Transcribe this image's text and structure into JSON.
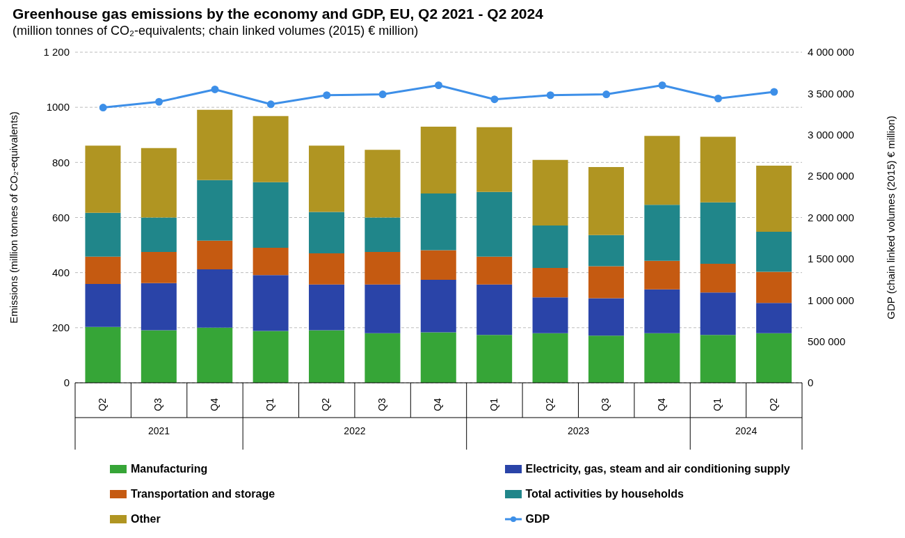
{
  "chart_data": {
    "type": "bar",
    "title": "Greenhouse gas emissions by the economy and GDP, EU, Q2 2021 - Q2 2024",
    "subtitle": "(million tonnes of CO₂-equivalents;  chain linked volumes (2015) € million)",
    "ylabel": "Emissions (million tonnes of CO₂-equivalents)",
    "y2label": "GDP (chain linked volumes (2015) € million)",
    "categories": [
      "Q2",
      "Q3",
      "Q4",
      "Q1",
      "Q2",
      "Q3",
      "Q4",
      "Q1",
      "Q2",
      "Q3",
      "Q4",
      "Q1",
      "Q2"
    ],
    "annotations": [
      "2021",
      "2022",
      "2023",
      "2024"
    ],
    "stacked": true,
    "grid": "y",
    "legend": "bottom",
    "marker": "circle",
    "ylim": [
      0,
      1200
    ],
    "yticks": [
      0,
      200,
      400,
      600,
      800,
      1000,
      {
        "value": 1200,
        "label": "1 200"
      }
    ],
    "y2lim": [
      0,
      4000000
    ],
    "y2ticks": [
      0,
      {
        "value": 500000,
        "label": "500 000"
      },
      {
        "value": 1000000,
        "label": "1 000 000"
      },
      {
        "value": 1500000,
        "label": "1 500 000"
      },
      {
        "value": 2000000,
        "label": "2 000 000"
      },
      {
        "value": 2500000,
        "label": "2 500 000"
      },
      {
        "value": 3000000,
        "label": "3 000 000"
      },
      {
        "value": 3500000,
        "label": "3 500 000"
      },
      {
        "value": 4000000,
        "label": "4 000 000"
      }
    ],
    "series": [
      {
        "name": "Manufacturing",
        "color": "#36a537",
        "values": [
          203,
          191,
          200,
          188,
          191,
          180,
          183,
          174,
          180,
          171,
          180,
          174,
          180
        ]
      },
      {
        "name": "Electricity, gas, steam and air conditioning supply",
        "color": "#2a44a8",
        "values": [
          156,
          171,
          212,
          203,
          166,
          177,
          191,
          183,
          130,
          136,
          159,
          154,
          110
        ]
      },
      {
        "name": "Transportation and storage",
        "color": "#c55a11",
        "values": [
          99,
          113,
          104,
          99,
          113,
          118,
          107,
          101,
          107,
          116,
          104,
          104,
          113
        ]
      },
      {
        "name": "Total activities by households",
        "color": "#20868a",
        "values": [
          159,
          125,
          220,
          238,
          150,
          125,
          206,
          235,
          154,
          113,
          203,
          223,
          145
        ]
      },
      {
        "name": "Other",
        "color": "#b09522",
        "values": [
          244,
          252,
          255,
          240,
          241,
          246,
          243,
          235,
          238,
          247,
          250,
          238,
          240
        ]
      },
      {
        "name": "GDP",
        "type": "line",
        "axis": "y2",
        "color": "#3d8fe8",
        "values": [
          3330000,
          3400000,
          3550000,
          3370000,
          3480000,
          3490000,
          3600000,
          3430000,
          3480000,
          3490000,
          3600000,
          3440000,
          3520000
        ]
      }
    ]
  }
}
